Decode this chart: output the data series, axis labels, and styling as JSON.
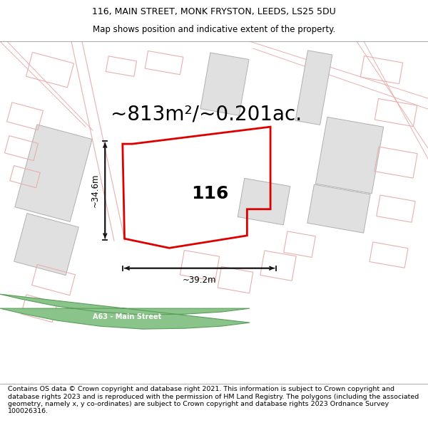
{
  "title_line1": "116, MAIN STREET, MONK FRYSTON, LEEDS, LS25 5DU",
  "title_line2": "Map shows position and indicative extent of the property.",
  "area_text": "~813m²/~0.201ac.",
  "number_text": "116",
  "dim_width": "~39.2m",
  "dim_height": "~34.6m",
  "footer_text": "Contains OS data © Crown copyright and database right 2021. This information is subject to Crown copyright and database rights 2023 and is reproduced with the permission of HM Land Registry. The polygons (including the associated geometry, namely x, y co-ordinates) are subject to Crown copyright and database rights 2023 Ordnance Survey 100026316.",
  "road_label": "A63 - Main Street",
  "map_bg": "#ffffff",
  "road_green_fill": "#8bc48a",
  "road_green_edge": "#5a9e59",
  "property_color": "#dd0000",
  "faint_bldg_color": "#e8b0b0",
  "faint_line_color": "#e8b0b0",
  "grey_bldg_fill": "#e0e0e0",
  "grey_bldg_edge": "#b0b0b0",
  "dim_line_color": "#111111",
  "title_fontsize": 9,
  "subtitle_fontsize": 8.5,
  "area_fontsize": 20,
  "number_fontsize": 18,
  "dim_fontsize": 8.5,
  "footer_fontsize": 6.8
}
